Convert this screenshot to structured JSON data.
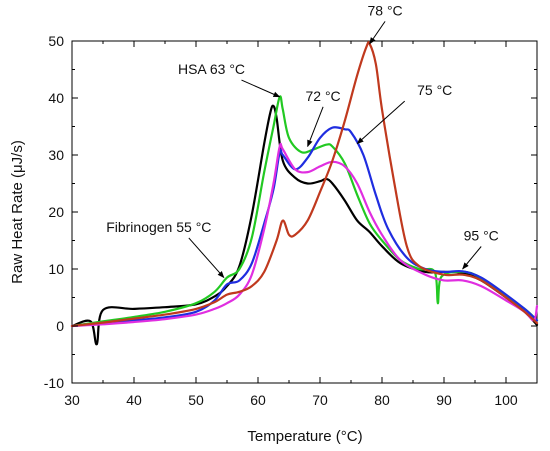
{
  "chart_data": {
    "type": "line",
    "title": "",
    "xlabel": "Temperature (°C)",
    "ylabel": "Raw Heat Rate (μJ/s)",
    "xlim": [
      30,
      105
    ],
    "ylim": [
      -10,
      50
    ],
    "xticks": [
      30,
      40,
      50,
      60,
      70,
      80,
      90,
      100
    ],
    "yticks": [
      -10,
      0,
      10,
      20,
      30,
      40,
      50
    ],
    "grid": false,
    "legend": "none",
    "series": [
      {
        "color": "#000000",
        "points": [
          [
            30,
            0
          ],
          [
            33,
            0.8
          ],
          [
            34,
            -3.2
          ],
          [
            35,
            2.8
          ],
          [
            40,
            3.0
          ],
          [
            45,
            3.3
          ],
          [
            50,
            3.8
          ],
          [
            53,
            5.2
          ],
          [
            55,
            7.0
          ],
          [
            57,
            10.5
          ],
          [
            59,
            19.5
          ],
          [
            61,
            32.0
          ],
          [
            62,
            37.5
          ],
          [
            62.5,
            38.6
          ],
          [
            63,
            36.5
          ],
          [
            64,
            29.0
          ],
          [
            66,
            26.0
          ],
          [
            68,
            25.0
          ],
          [
            70,
            25.4
          ],
          [
            71,
            25.8
          ],
          [
            72,
            25.0
          ],
          [
            74,
            22.0
          ],
          [
            76,
            18.5
          ],
          [
            78,
            16.5
          ],
          [
            80,
            14.0
          ],
          [
            83,
            11.0
          ],
          [
            87,
            9.5
          ],
          [
            90,
            9.5
          ],
          [
            93,
            9.3
          ],
          [
            96,
            8.0
          ],
          [
            100,
            5.0
          ],
          [
            103,
            2.5
          ],
          [
            105,
            0.2
          ]
        ]
      },
      {
        "color": "#22c922",
        "points": [
          [
            30,
            0
          ],
          [
            35,
            0.8
          ],
          [
            40,
            1.6
          ],
          [
            45,
            2.5
          ],
          [
            50,
            4.0
          ],
          [
            53,
            6.0
          ],
          [
            55,
            8.5
          ],
          [
            57,
            10.0
          ],
          [
            59,
            15.5
          ],
          [
            61,
            27.0
          ],
          [
            62.5,
            35.0
          ],
          [
            63.5,
            40.2
          ],
          [
            64,
            38.0
          ],
          [
            65,
            33.0
          ],
          [
            67,
            30.5
          ],
          [
            69,
            31.0
          ],
          [
            71,
            31.8
          ],
          [
            72,
            31.5
          ],
          [
            74,
            28.5
          ],
          [
            76,
            23.0
          ],
          [
            78,
            18.0
          ],
          [
            80,
            15.0
          ],
          [
            83,
            11.5
          ],
          [
            86,
            10.0
          ],
          [
            88.5,
            9.5
          ],
          [
            89,
            4.0
          ],
          [
            89.5,
            8.5
          ],
          [
            92,
            9.5
          ],
          [
            95,
            9.0
          ],
          [
            99,
            6.0
          ],
          [
            103,
            3.0
          ],
          [
            105,
            1.0
          ]
        ]
      },
      {
        "color": "#1f2de0",
        "points": [
          [
            30,
            0
          ],
          [
            35,
            0.5
          ],
          [
            40,
            1.0
          ],
          [
            45,
            1.5
          ],
          [
            50,
            2.5
          ],
          [
            53,
            4.5
          ],
          [
            55,
            7.3
          ],
          [
            57,
            8.0
          ],
          [
            59,
            11.0
          ],
          [
            61,
            18.0
          ],
          [
            62.5,
            24.0
          ],
          [
            63.5,
            30.5
          ],
          [
            64,
            30.0
          ],
          [
            66,
            27.5
          ],
          [
            68,
            29.5
          ],
          [
            70,
            33.0
          ],
          [
            72,
            34.8
          ],
          [
            74,
            34.5
          ],
          [
            75,
            34.0
          ],
          [
            77,
            30.0
          ],
          [
            79,
            23.0
          ],
          [
            81,
            17.0
          ],
          [
            84,
            12.0
          ],
          [
            87,
            10.0
          ],
          [
            90,
            9.5
          ],
          [
            93,
            9.6
          ],
          [
            96,
            8.5
          ],
          [
            100,
            5.5
          ],
          [
            103,
            3.0
          ],
          [
            105,
            1.0
          ]
        ]
      },
      {
        "color": "#e02ee0",
        "points": [
          [
            30,
            0
          ],
          [
            35,
            0.3
          ],
          [
            40,
            0.7
          ],
          [
            45,
            1.2
          ],
          [
            50,
            2.0
          ],
          [
            53,
            3.0
          ],
          [
            55,
            4.0
          ],
          [
            57,
            5.5
          ],
          [
            59,
            9.0
          ],
          [
            61,
            17.0
          ],
          [
            62.5,
            25.0
          ],
          [
            63.5,
            31.5
          ],
          [
            64,
            31.0
          ],
          [
            66,
            27.5
          ],
          [
            68,
            27.0
          ],
          [
            70,
            28.0
          ],
          [
            72,
            28.8
          ],
          [
            74,
            28.0
          ],
          [
            76,
            25.0
          ],
          [
            78,
            20.0
          ],
          [
            80,
            16.0
          ],
          [
            83,
            11.5
          ],
          [
            87,
            9.0
          ],
          [
            90,
            8.0
          ],
          [
            93,
            8.0
          ],
          [
            96,
            7.0
          ],
          [
            100,
            4.5
          ],
          [
            103,
            2.5
          ],
          [
            104.5,
            1.0
          ],
          [
            105,
            3.5
          ]
        ]
      },
      {
        "color": "#c0391e",
        "points": [
          [
            30,
            0
          ],
          [
            35,
            0.6
          ],
          [
            40,
            1.3
          ],
          [
            45,
            2.0
          ],
          [
            50,
            3.0
          ],
          [
            53,
            4.2
          ],
          [
            55,
            5.5
          ],
          [
            57,
            6.0
          ],
          [
            59,
            7.0
          ],
          [
            61,
            9.5
          ],
          [
            63,
            15.0
          ],
          [
            64,
            18.5
          ],
          [
            65,
            16.0
          ],
          [
            66,
            16.0
          ],
          [
            68,
            18.5
          ],
          [
            70,
            23.5
          ],
          [
            72,
            29.0
          ],
          [
            74,
            36.0
          ],
          [
            76,
            44.0
          ],
          [
            77.5,
            49.0
          ],
          [
            78,
            49.5
          ],
          [
            79,
            46.0
          ],
          [
            80,
            38.0
          ],
          [
            82,
            25.0
          ],
          [
            84,
            14.0
          ],
          [
            86,
            10.5
          ],
          [
            90,
            9.0
          ],
          [
            93,
            9.0
          ],
          [
            96,
            8.0
          ],
          [
            100,
            5.0
          ],
          [
            103,
            2.5
          ],
          [
            105,
            0.5
          ]
        ]
      }
    ],
    "annotations": [
      {
        "text": "78 °C",
        "x": 80.5,
        "y": 54.5,
        "arrow_to": [
          78,
          49.5
        ]
      },
      {
        "text": "HSA 63 °C",
        "x": 52.5,
        "y": 44.2,
        "arrow_to": [
          63.5,
          40.2
        ]
      },
      {
        "text": "72 °C",
        "x": 70.5,
        "y": 39.5,
        "arrow_to": [
          68,
          31.5
        ]
      },
      {
        "text": "75 °C",
        "x": 88.5,
        "y": 40.5,
        "arrow_to": [
          76,
          32.0
        ]
      },
      {
        "text": "Fibrinogen 55 °C",
        "x": 44,
        "y": 16.5,
        "arrow_to": [
          54.5,
          8.5
        ]
      },
      {
        "text": "95 °C",
        "x": 96,
        "y": 15.0,
        "arrow_to": [
          93,
          10.0
        ]
      }
    ]
  }
}
